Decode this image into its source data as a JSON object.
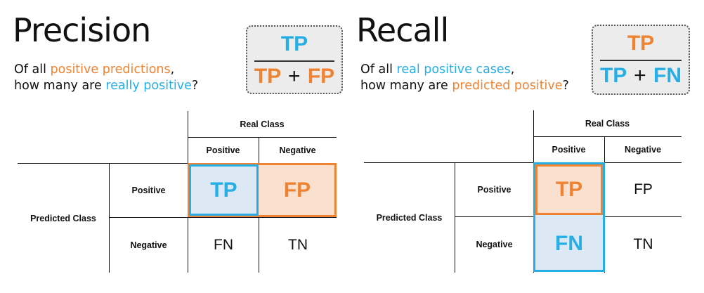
{
  "colors": {
    "orange": "#ee8433",
    "blue": "#27aee4",
    "orange_fill": "#fae0cf",
    "blue_fill": "#dce8f3"
  },
  "precision": {
    "title": "Precision",
    "question_line1": {
      "before": "Of all ",
      "highlight": "positive predictions",
      "after": ","
    },
    "question_line2": {
      "before": "how many are ",
      "highlight": "really positive",
      "after": "?"
    },
    "formula": {
      "numerator": "TP",
      "denominator_left": "TP",
      "plus": "+",
      "denominator_right": "FP"
    }
  },
  "recall": {
    "title": "Recall",
    "question_line1": {
      "before": "Of all ",
      "highlight": "real positive cases",
      "after": ","
    },
    "question_line2": {
      "before": "how many are ",
      "highlight": "predicted positive",
      "after": "?"
    },
    "formula": {
      "numerator": "TP",
      "denominator_left": "TP",
      "plus": "+",
      "denominator_right": "FN"
    }
  },
  "matrix": {
    "real_class": "Real Class",
    "predicted_class": "Predicted Class",
    "positive": "Positive",
    "negative": "Negative",
    "tp": "TP",
    "fp": "FP",
    "fn": "FN",
    "tn": "TN"
  }
}
